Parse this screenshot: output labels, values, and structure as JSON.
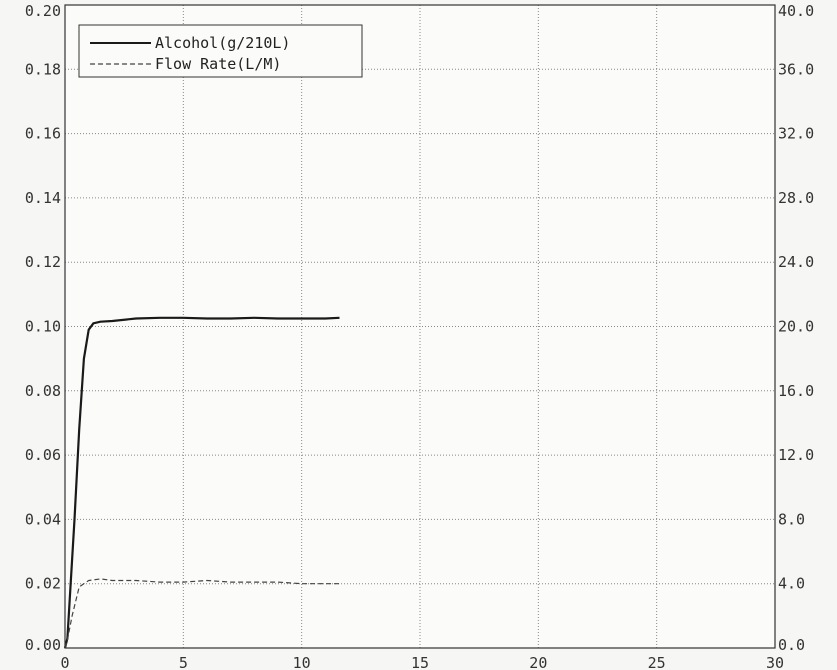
{
  "chart_data": {
    "type": "line",
    "title": "",
    "xlabel": "",
    "ylabel": "",
    "y2label": "",
    "xlim": [
      0,
      30
    ],
    "ylim": [
      0,
      0.2
    ],
    "y2lim": [
      0,
      40
    ],
    "grid": true,
    "legend_position": "top-left",
    "x_ticks": [
      "0",
      "5",
      "10",
      "15",
      "20",
      "25",
      "30"
    ],
    "y_ticks": [
      "0.00",
      "0.02",
      "0.04",
      "0.06",
      "0.08",
      "0.10",
      "0.12",
      "0.14",
      "0.16",
      "0.18",
      "0.20"
    ],
    "y2_ticks": [
      "0.0",
      "4.0",
      "8.0",
      "12.0",
      "16.0",
      "20.0",
      "24.0",
      "28.0",
      "32.0",
      "36.0",
      "40.0"
    ],
    "series": [
      {
        "name": "Alcohol(g/210L)",
        "axis": "left",
        "style": "solid",
        "color": "#1a1a1a",
        "x": [
          0,
          0.1,
          0.2,
          0.4,
          0.6,
          0.8,
          1.0,
          1.2,
          1.5,
          2.0,
          3.0,
          4.0,
          5.0,
          6.0,
          7.0,
          8.0,
          9.0,
          10.0,
          11.0,
          11.6
        ],
        "y": [
          0,
          0.003,
          0.015,
          0.04,
          0.068,
          0.09,
          0.099,
          0.101,
          0.1015,
          0.1017,
          0.1025,
          0.1027,
          0.1027,
          0.1025,
          0.1025,
          0.1027,
          0.1025,
          0.1025,
          0.1025,
          0.1027
        ]
      },
      {
        "name": "Flow Rate(L/M)",
        "axis": "right",
        "style": "dashed",
        "color": "#444444",
        "x": [
          0,
          0.1,
          0.3,
          0.6,
          1.0,
          1.5,
          2.0,
          3.0,
          4.0,
          5.0,
          6.0,
          7.0,
          8.0,
          9.0,
          10.0,
          11.0,
          11.6
        ],
        "y": [
          0,
          0.5,
          2.0,
          3.8,
          4.2,
          4.3,
          4.2,
          4.2,
          4.1,
          4.1,
          4.2,
          4.1,
          4.1,
          4.1,
          4.0,
          4.0,
          4.0
        ]
      }
    ]
  }
}
